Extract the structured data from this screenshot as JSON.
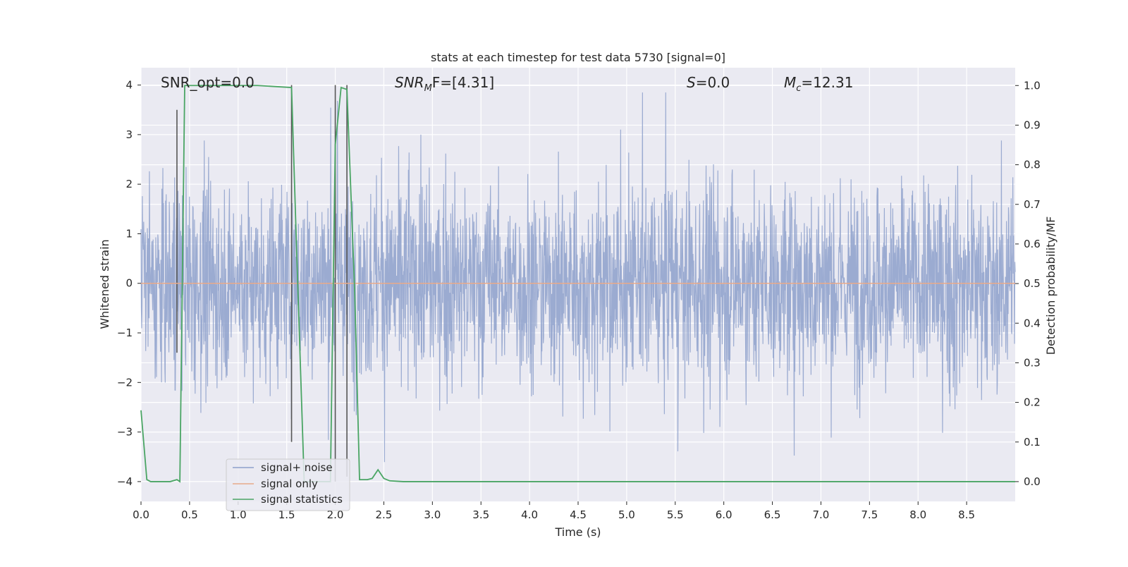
{
  "chart_data": {
    "type": "line",
    "title": "stats at each timestep for test data 5730 [signal=0]",
    "xlabel": "Time (s)",
    "ylabel_left": "Whitened strain",
    "ylabel_right": "Detection probability/MF",
    "xlim": [
      0.0,
      9.0
    ],
    "ylim_left": [
      -4.4,
      4.35
    ],
    "ylim_right": [
      -0.05,
      1.045
    ],
    "xticks": [
      0.0,
      0.5,
      1.0,
      1.5,
      2.0,
      2.5,
      3.0,
      3.5,
      4.0,
      4.5,
      5.0,
      5.5,
      6.0,
      6.5,
      7.0,
      7.5,
      8.0,
      8.5
    ],
    "xtick_labels": [
      "0.0",
      "0.5",
      "1.0",
      "1.5",
      "2.0",
      "2.5",
      "3.0",
      "3.5",
      "4.0",
      "4.5",
      "5.0",
      "5.5",
      "6.0",
      "6.5",
      "7.0",
      "7.5",
      "8.0",
      "8.5"
    ],
    "yticks_left": [
      -4,
      -3,
      -2,
      -1,
      0,
      1,
      2,
      3,
      4
    ],
    "ytick_labels_left": [
      "−4",
      "−3",
      "−2",
      "−1",
      "0",
      "1",
      "2",
      "3",
      "4"
    ],
    "yticks_right": [
      0.0,
      0.1,
      0.2,
      0.3,
      0.4,
      0.5,
      0.6,
      0.7,
      0.8,
      0.9,
      1.0
    ],
    "ytick_labels_right": [
      "0.0",
      "0.1",
      "0.2",
      "0.3",
      "0.4",
      "0.5",
      "0.6",
      "0.7",
      "0.8",
      "0.9",
      "1.0"
    ],
    "grid": true,
    "legend_placement": "lower-left",
    "annotations": {
      "snr_opt": "SNR_opt=0.0",
      "snr_mf_prefix": "SNR",
      "snr_mf_sub": "M",
      "snr_mf_suffix": "F=[4.31]",
      "s_prefix": "S",
      "s_suffix": "=0.0",
      "mc_prefix": "M",
      "mc_sub": "c",
      "mc_suffix": "=12.31"
    },
    "series": [
      {
        "name": "signal+ noise",
        "axis": "left",
        "style": "noise",
        "color": "#8da0cb",
        "x_range": [
          0.0,
          9.0
        ],
        "amplitude_envelope": [
          -4.0,
          3.85
        ]
      },
      {
        "name": "signal only",
        "axis": "left",
        "color": "#e8a98a",
        "x": [
          0.0,
          9.0
        ],
        "y": [
          0.0,
          0.0
        ]
      },
      {
        "name": "signal statistics",
        "axis": "right",
        "color": "#4aa564",
        "x": [
          0.0,
          0.06,
          0.1,
          0.3,
          0.37,
          0.4,
          0.45,
          1.2,
          1.55,
          1.6,
          1.68,
          1.75,
          1.95,
          2.0,
          2.06,
          2.12,
          2.2,
          2.25,
          2.33,
          2.38,
          2.44,
          2.5,
          2.56,
          2.7,
          9.0
        ],
        "y": [
          0.18,
          0.005,
          0.0,
          0.0,
          0.005,
          0.0,
          1.0,
          1.0,
          0.995,
          0.6,
          0.0,
          0.0,
          0.0,
          0.85,
          0.995,
          0.99,
          0.48,
          0.005,
          0.005,
          0.008,
          0.03,
          0.008,
          0.002,
          0.0,
          0.0
        ]
      }
    ],
    "vertical_markers": {
      "color": "#555555",
      "x": [
        0.37,
        1.55,
        2.0,
        2.12
      ],
      "y_top": [
        3.5,
        4.0,
        4.0,
        4.0
      ],
      "y_bottom": [
        -1.4,
        -3.2,
        -4.0,
        -3.9
      ]
    }
  },
  "legend": [
    {
      "label": "signal+ noise",
      "color": "#8da0cb"
    },
    {
      "label": "signal only",
      "color": "#e8a98a"
    },
    {
      "label": "signal statistics",
      "color": "#4aa564"
    }
  ]
}
